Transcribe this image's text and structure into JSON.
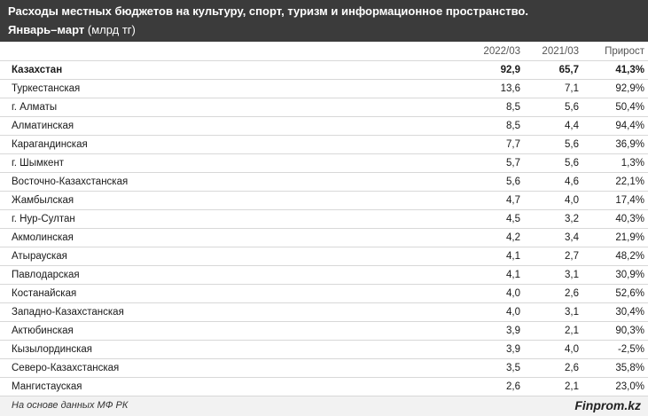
{
  "header": {
    "title": "Расходы местных бюджетов на культуру, спорт, туризм и информационное пространство.",
    "period": "Январь–март",
    "unit": "(млрд тг)"
  },
  "chart_data": {
    "type": "table",
    "columns": [
      "",
      "2022/03",
      "2021/03",
      "Прирост"
    ],
    "rows": [
      [
        "Казахстан",
        "92,9",
        "65,7",
        "41,3%"
      ],
      [
        "Туркестанская",
        "13,6",
        "7,1",
        "92,9%"
      ],
      [
        "г. Алматы",
        "8,5",
        "5,6",
        "50,4%"
      ],
      [
        "Алматинская",
        "8,5",
        "4,4",
        "94,4%"
      ],
      [
        "Карагандинская",
        "7,7",
        "5,6",
        "36,9%"
      ],
      [
        "г. Шымкент",
        "5,7",
        "5,6",
        "1,3%"
      ],
      [
        "Восточно-Казахстанская",
        "5,6",
        "4,6",
        "22,1%"
      ],
      [
        "Жамбылская",
        "4,7",
        "4,0",
        "17,4%"
      ],
      [
        "г. Нур-Султан",
        "4,5",
        "3,2",
        "40,3%"
      ],
      [
        "Акмолинская",
        "4,2",
        "3,4",
        "21,9%"
      ],
      [
        "Атырауская",
        "4,1",
        "2,7",
        "48,2%"
      ],
      [
        "Павлодарская",
        "4,1",
        "3,1",
        "30,9%"
      ],
      [
        "Костанайская",
        "4,0",
        "2,6",
        "52,6%"
      ],
      [
        "Западно-Казахстанская",
        "4,0",
        "3,1",
        "30,4%"
      ],
      [
        "Актюбинская",
        "3,9",
        "2,1",
        "90,3%"
      ],
      [
        "Кызылординская",
        "3,9",
        "4,0",
        "-2,5%"
      ],
      [
        "Северо-Казахстанская",
        "3,5",
        "2,6",
        "35,8%"
      ],
      [
        "Мангистауская",
        "2,6",
        "2,1",
        "23,0%"
      ]
    ]
  },
  "footer": {
    "source": "На основе данных МФ РК",
    "brand": "Finprom.kz"
  }
}
